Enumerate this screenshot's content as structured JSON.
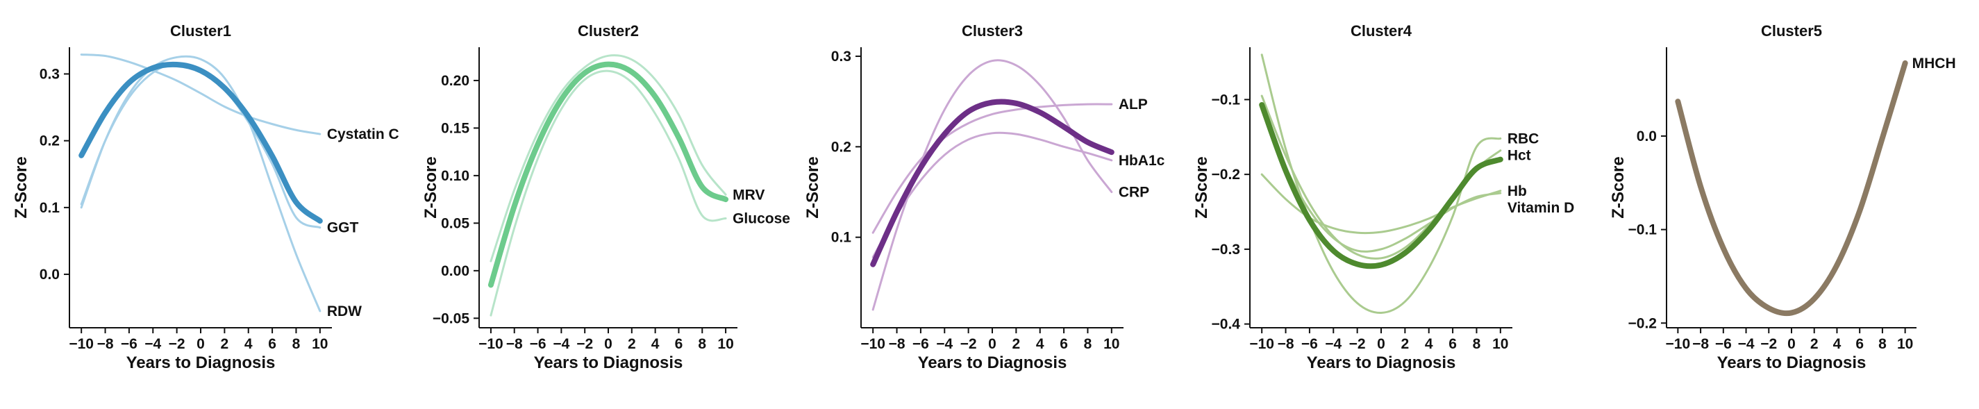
{
  "chart_data": [
    {
      "type": "line",
      "title": "Cluster1",
      "xlabel": "Years to Diagnosis",
      "ylabel": "Z-Score",
      "xlim": [
        -11,
        11
      ],
      "ylim": [
        -0.08,
        0.34
      ],
      "xticks": [
        -10,
        -8,
        -6,
        -4,
        -2,
        0,
        2,
        4,
        6,
        8,
        10
      ],
      "yticks": [
        0.0,
        0.1,
        0.2,
        0.3
      ],
      "ytick_labels": [
        "0.0",
        "0.1",
        "0.2",
        "0.3"
      ],
      "line_color": "#a6d0e8",
      "mean_color": "#3b8fc2",
      "x": [
        -10,
        -8,
        -6,
        -4,
        -2,
        0,
        2,
        4,
        6,
        8,
        10
      ],
      "series": [
        {
          "name": "Cystatin C",
          "values": [
            0.329,
            0.327,
            0.318,
            0.305,
            0.29,
            0.271,
            0.251,
            0.236,
            0.225,
            0.216,
            0.21
          ]
        },
        {
          "name": "GGT",
          "values": [
            0.105,
            0.2,
            0.265,
            0.302,
            0.316,
            0.307,
            0.277,
            0.228,
            0.165,
            0.085,
            0.07
          ]
        },
        {
          "name": "RDW",
          "values": [
            0.1,
            0.2,
            0.27,
            0.31,
            0.325,
            0.322,
            0.294,
            0.23,
            0.13,
            0.03,
            -0.055
          ]
        },
        {
          "name": "",
          "mean": true,
          "values": [
            0.178,
            0.242,
            0.287,
            0.309,
            0.314,
            0.305,
            0.279,
            0.236,
            0.177,
            0.108,
            0.08
          ]
        }
      ]
    },
    {
      "type": "line",
      "title": "Cluster2",
      "xlabel": "Years to Diagnosis",
      "ylabel": "Z-Score",
      "xlim": [
        -11,
        11
      ],
      "ylim": [
        -0.06,
        0.235
      ],
      "xticks": [
        -10,
        -8,
        -6,
        -4,
        -2,
        0,
        2,
        4,
        6,
        8,
        10
      ],
      "yticks": [
        -0.05,
        0.0,
        0.05,
        0.1,
        0.15,
        0.2
      ],
      "ytick_labels": [
        "−0.05",
        "0.00",
        "0.05",
        "0.10",
        "0.15",
        "0.20"
      ],
      "line_color": "#b7e4c9",
      "mean_color": "#6ccb8c",
      "x": [
        -10,
        -8,
        -6,
        -4,
        -2,
        0,
        2,
        4,
        6,
        8,
        10
      ],
      "series": [
        {
          "name": "MRV",
          "values": [
            0.01,
            0.085,
            0.145,
            0.188,
            0.214,
            0.226,
            0.222,
            0.201,
            0.164,
            0.111,
            0.08
          ]
        },
        {
          "name": "Glucose",
          "values": [
            -0.047,
            0.045,
            0.118,
            0.17,
            0.201,
            0.21,
            0.198,
            0.165,
            0.118,
            0.058,
            0.055
          ]
        },
        {
          "name": "",
          "mean": true,
          "values": [
            -0.015,
            0.068,
            0.133,
            0.18,
            0.208,
            0.217,
            0.209,
            0.183,
            0.14,
            0.088,
            0.075
          ]
        }
      ]
    },
    {
      "type": "line",
      "title": "Cluster3",
      "xlabel": "Years to Diagnosis",
      "ylabel": "Z-Score",
      "xlim": [
        -11,
        11
      ],
      "ylim": [
        0.0,
        0.31
      ],
      "xticks": [
        -10,
        -8,
        -6,
        -4,
        -2,
        0,
        2,
        4,
        6,
        8,
        10
      ],
      "yticks": [
        0.1,
        0.2,
        0.3
      ],
      "ytick_labels": [
        "0.1",
        "0.2",
        "0.3"
      ],
      "line_color": "#caa7d3",
      "mean_color": "#6d2f87",
      "x": [
        -10,
        -8,
        -6,
        -4,
        -2,
        0,
        2,
        4,
        6,
        8,
        10
      ],
      "series": [
        {
          "name": "ALP",
          "values": [
            0.105,
            0.15,
            0.186,
            0.21,
            0.226,
            0.236,
            0.241,
            0.244,
            0.246,
            0.247,
            0.247
          ]
        },
        {
          "name": "HbA1c",
          "values": [
            0.078,
            0.125,
            0.163,
            0.191,
            0.208,
            0.215,
            0.214,
            0.208,
            0.2,
            0.193,
            0.185
          ]
        },
        {
          "name": "CRP",
          "values": [
            0.02,
            0.109,
            0.182,
            0.241,
            0.279,
            0.295,
            0.29,
            0.268,
            0.232,
            0.185,
            0.15
          ]
        },
        {
          "name": "",
          "mean": true,
          "values": [
            0.07,
            0.128,
            0.177,
            0.214,
            0.239,
            0.249,
            0.248,
            0.238,
            0.222,
            0.205,
            0.194
          ]
        }
      ]
    },
    {
      "type": "line",
      "title": "Cluster4",
      "xlabel": "Years to Diagnosis",
      "ylabel": "Z-Score",
      "xlim": [
        -11,
        11
      ],
      "ylim": [
        -0.405,
        -0.03
      ],
      "xticks": [
        -10,
        -8,
        -6,
        -4,
        -2,
        0,
        2,
        4,
        6,
        8,
        10
      ],
      "yticks": [
        -0.4,
        -0.3,
        -0.2,
        -0.1
      ],
      "ytick_labels": [
        "−0.4",
        "−0.3",
        "−0.2",
        "−0.1"
      ],
      "line_color": "#aacb8f",
      "mean_color": "#4e8a2e",
      "x": [
        -10,
        -8,
        -6,
        -4,
        -2,
        0,
        2,
        4,
        6,
        8,
        10
      ],
      "series": [
        {
          "name": "Hb",
          "values": [
            -0.2,
            -0.233,
            -0.258,
            -0.272,
            -0.278,
            -0.277,
            -0.27,
            -0.259,
            -0.244,
            -0.232,
            -0.222
          ]
        },
        {
          "name": "RBC",
          "values": [
            -0.04,
            -0.166,
            -0.26,
            -0.33,
            -0.372,
            -0.385,
            -0.37,
            -0.325,
            -0.256,
            -0.163,
            -0.152
          ]
        },
        {
          "name": "Hct",
          "values": [
            -0.095,
            -0.175,
            -0.239,
            -0.283,
            -0.307,
            -0.312,
            -0.298,
            -0.268,
            -0.23,
            -0.192,
            -0.168
          ]
        },
        {
          "name": "Vitamin D",
          "values": [
            -0.11,
            -0.19,
            -0.248,
            -0.285,
            -0.302,
            -0.3,
            -0.286,
            -0.266,
            -0.245,
            -0.23,
            -0.225
          ]
        },
        {
          "name": "",
          "mean": true,
          "values": [
            -0.107,
            -0.195,
            -0.261,
            -0.302,
            -0.32,
            -0.321,
            -0.305,
            -0.274,
            -0.232,
            -0.192,
            -0.18
          ]
        }
      ]
    },
    {
      "type": "line",
      "title": "Cluster5",
      "xlabel": "Years to Diagnosis",
      "ylabel": "Z-Score",
      "xlim": [
        -11,
        11
      ],
      "ylim": [
        -0.205,
        0.095
      ],
      "xticks": [
        -10,
        -8,
        -6,
        -4,
        -2,
        0,
        2,
        4,
        6,
        8,
        10
      ],
      "yticks": [
        -0.2,
        -0.1,
        0.0
      ],
      "ytick_labels": [
        "−0.2",
        "−0.1",
        "0.0"
      ],
      "line_color": "#8b7a63",
      "mean_color": "#8b7a63",
      "x": [
        -10,
        -8,
        -6,
        -4,
        -2,
        0,
        2,
        4,
        6,
        8,
        10
      ],
      "series": [
        {
          "name": "MHCH",
          "mean": true,
          "values": [
            0.037,
            -0.054,
            -0.12,
            -0.163,
            -0.184,
            -0.189,
            -0.174,
            -0.138,
            -0.08,
            -0.002,
            0.078
          ]
        }
      ]
    }
  ]
}
